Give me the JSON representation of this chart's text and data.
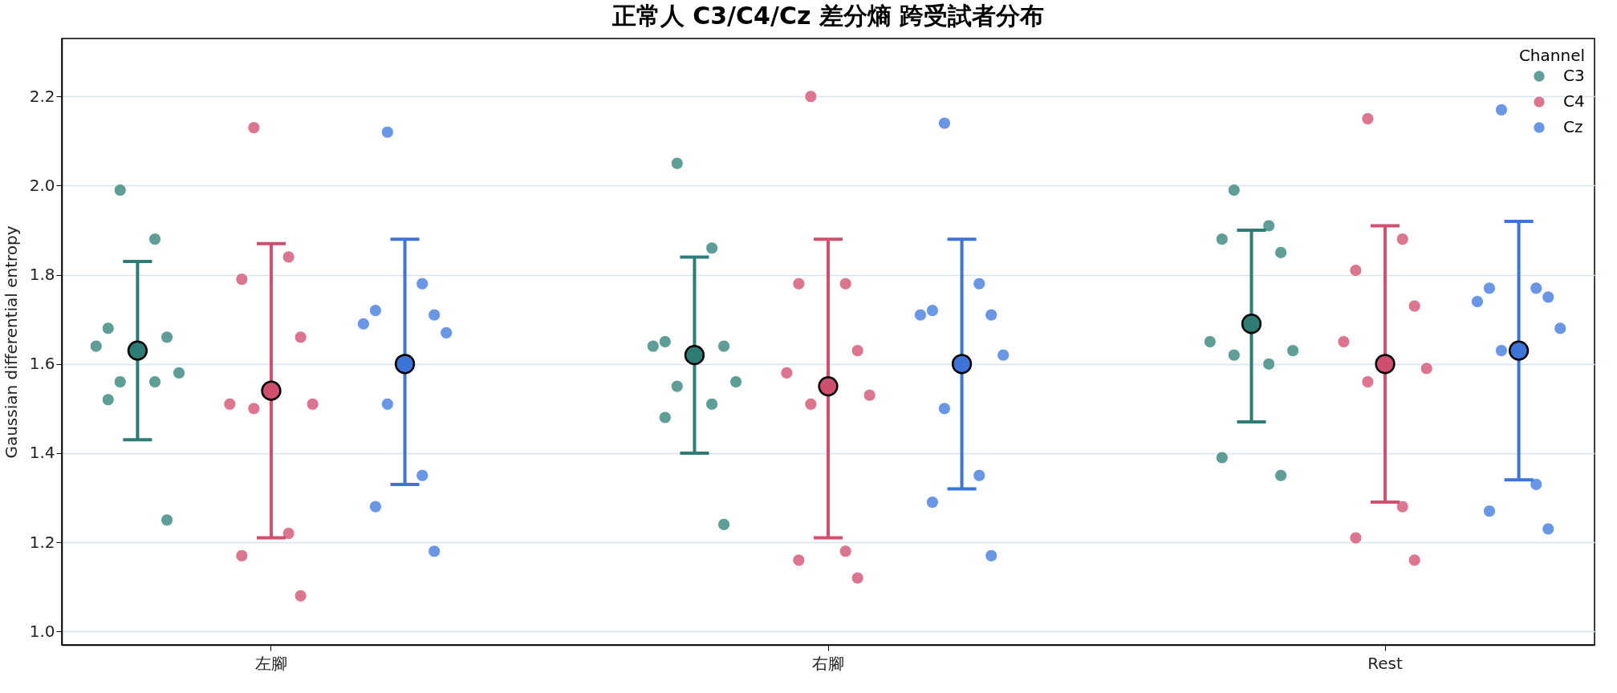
{
  "chart_data": {
    "type": "scatter",
    "title": "正常人 C3/C4/Cz 差分熵 跨受試者分布",
    "ylabel": "Gaussian differential entropy",
    "legend_title": "Channel",
    "categories": [
      "左腳",
      "右腳",
      "Rest"
    ],
    "ylim": [
      0.97,
      2.33
    ],
    "yticks": [
      {
        "value": 1.0,
        "label": "1.0"
      },
      1.2,
      1.4,
      1.6,
      1.8,
      {
        "value": 2.0,
        "label": "2.0"
      },
      2.2
    ],
    "grid": "y",
    "legend": "top right",
    "marker": "circle",
    "series": [
      {
        "name": "C3",
        "color": "#5e9e96",
        "x": [
          "左腳",
          "左腳",
          "左腳",
          "左腳",
          "左腳",
          "左腳",
          "左腳",
          "左腳",
          "左腳",
          "左腳",
          "右腳",
          "右腳",
          "右腳",
          "右腳",
          "右腳",
          "右腳",
          "右腳",
          "右腳",
          "右腳",
          "右腳",
          "Rest",
          "Rest",
          "Rest",
          "Rest",
          "Rest",
          "Rest",
          "Rest",
          "Rest",
          "Rest",
          "Rest"
        ],
        "values": [
          1.99,
          1.88,
          1.68,
          1.66,
          1.64,
          1.58,
          1.56,
          1.56,
          1.52,
          1.25,
          2.05,
          1.86,
          1.65,
          1.64,
          1.64,
          1.56,
          1.55,
          1.51,
          1.48,
          1.24,
          1.99,
          1.91,
          1.88,
          1.85,
          1.65,
          1.63,
          1.62,
          1.6,
          1.39,
          1.35
        ]
      },
      {
        "name": "C4",
        "color": "#dc7590",
        "x": [
          "左腳",
          "左腳",
          "左腳",
          "左腳",
          "左腳",
          "左腳",
          "左腳",
          "左腳",
          "左腳",
          "左腳",
          "右腳",
          "右腳",
          "右腳",
          "右腳",
          "右腳",
          "右腳",
          "右腳",
          "右腳",
          "右腳",
          "右腳",
          "Rest",
          "Rest",
          "Rest",
          "Rest",
          "Rest",
          "Rest",
          "Rest",
          "Rest",
          "Rest",
          "Rest"
        ],
        "values": [
          2.13,
          1.84,
          1.79,
          1.66,
          1.51,
          1.51,
          1.5,
          1.22,
          1.17,
          1.08,
          2.2,
          1.78,
          1.78,
          1.63,
          1.58,
          1.53,
          1.51,
          1.18,
          1.16,
          1.12,
          2.15,
          1.88,
          1.81,
          1.73,
          1.65,
          1.59,
          1.56,
          1.28,
          1.21,
          1.16
        ]
      },
      {
        "name": "Cz",
        "color": "#6a96e6",
        "x": [
          "左腳",
          "左腳",
          "左腳",
          "左腳",
          "左腳",
          "左腳",
          "左腳",
          "左腳",
          "左腳",
          "左腳",
          "右腳",
          "右腳",
          "右腳",
          "右腳",
          "右腳",
          "右腳",
          "右腳",
          "右腳",
          "右腳",
          "右腳",
          "Rest",
          "Rest",
          "Rest",
          "Rest",
          "Rest",
          "Rest",
          "Rest",
          "Rest",
          "Rest",
          "Rest"
        ],
        "values": [
          2.12,
          1.78,
          1.72,
          1.71,
          1.69,
          1.67,
          1.51,
          1.35,
          1.28,
          1.18,
          2.14,
          1.78,
          1.72,
          1.71,
          1.71,
          1.62,
          1.5,
          1.35,
          1.29,
          1.17,
          2.17,
          1.77,
          1.77,
          1.75,
          1.74,
          1.68,
          1.63,
          1.33,
          1.27,
          1.23
        ]
      },
      {
        "color": "#2e7d74",
        "values": [
          1.63,
          1.62,
          1.69
        ],
        "errors": [
          [
            1.43,
            1.83
          ],
          [
            1.4,
            1.84
          ],
          [
            1.47,
            1.9
          ]
        ]
      },
      {
        "color": "#d04e6e",
        "values": [
          1.54,
          1.55,
          1.6
        ],
        "errors": [
          [
            1.21,
            1.87
          ],
          [
            1.21,
            1.88
          ],
          [
            1.29,
            1.91
          ]
        ]
      },
      {
        "color": "#3c74d8",
        "values": [
          1.6,
          1.6,
          1.63
        ],
        "errors": [
          [
            1.33,
            1.88
          ],
          [
            1.32,
            1.88
          ],
          [
            1.34,
            1.92
          ]
        ]
      }
    ]
  }
}
